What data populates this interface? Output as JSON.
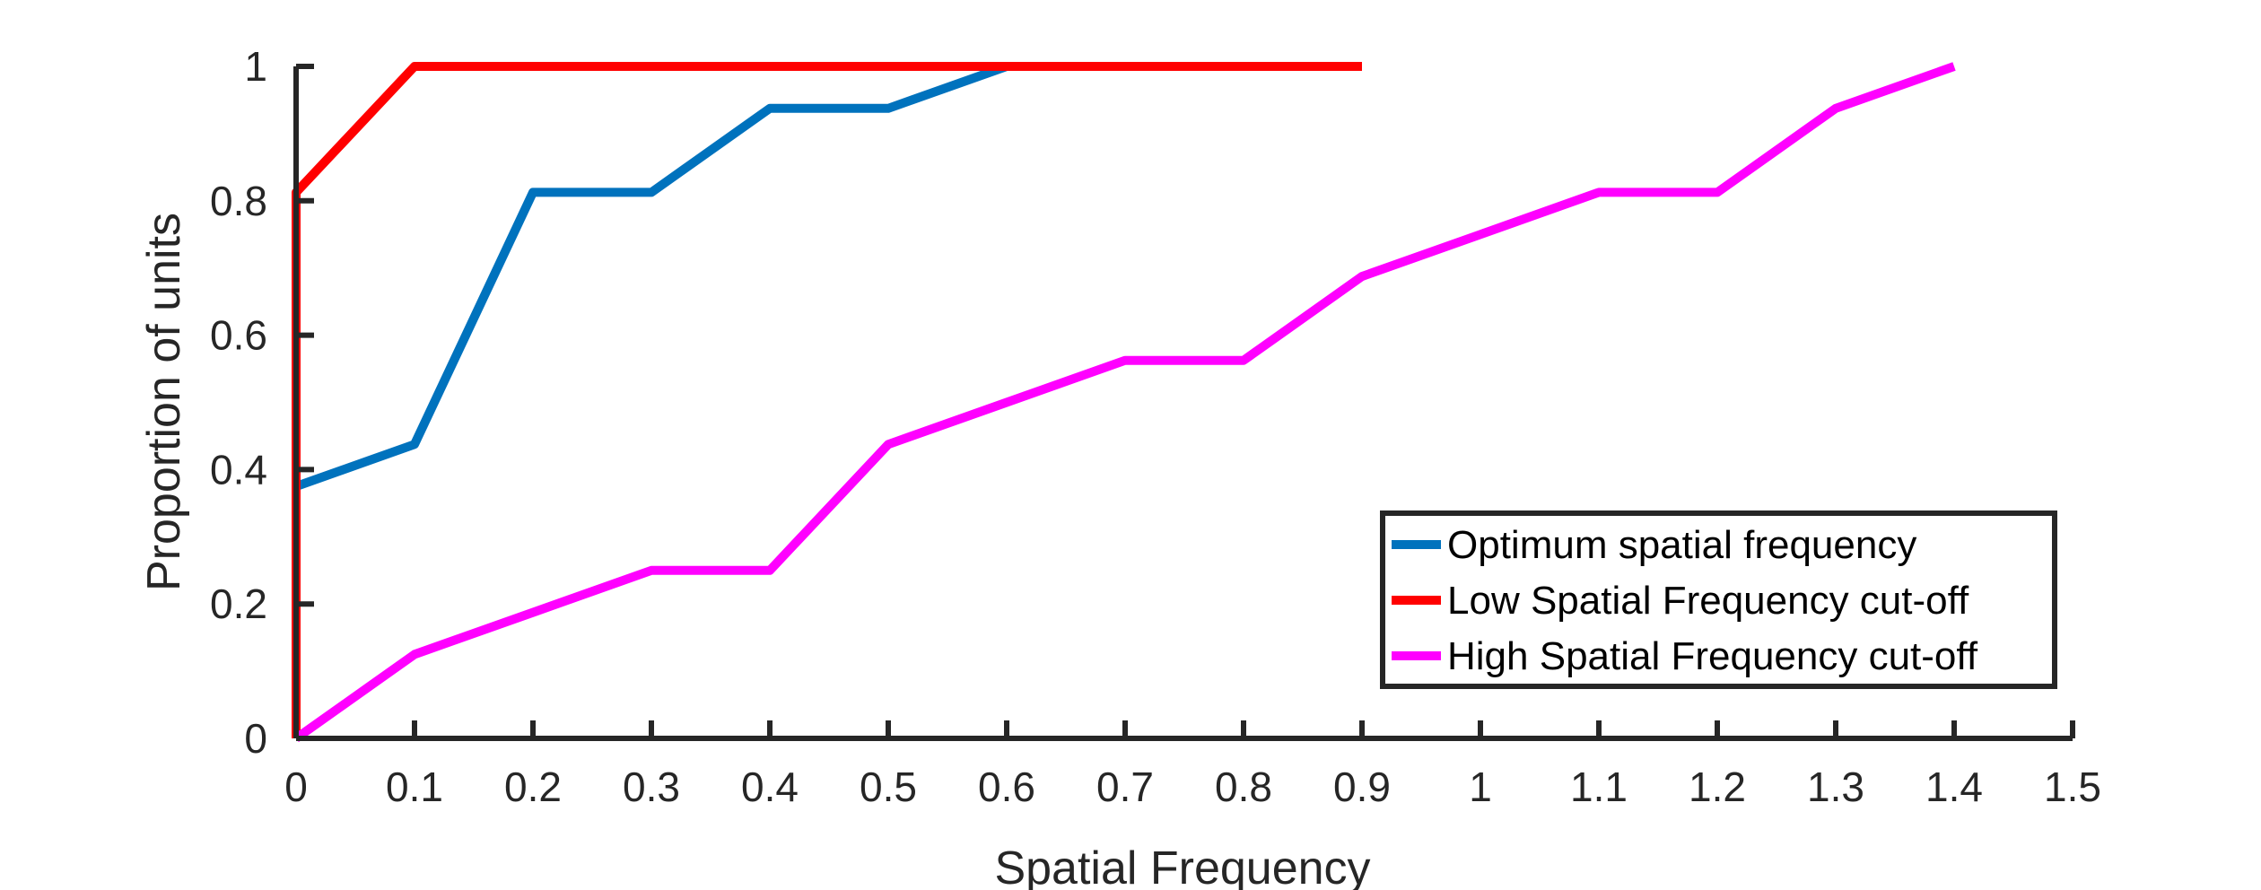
{
  "chart_data": {
    "type": "line",
    "title": "",
    "xlabel": "Spatial Frequency",
    "ylabel": "Proportion of units",
    "xlim": [
      0,
      1.5
    ],
    "ylim": [
      0,
      1
    ],
    "xticks": [
      0,
      0.1,
      0.2,
      0.3,
      0.4,
      0.5,
      0.6,
      0.7,
      0.8,
      0.9,
      1.0,
      1.1,
      1.2,
      1.3,
      1.4,
      1.5
    ],
    "xtick_labels": [
      "0",
      "0.1",
      "0.2",
      "0.3",
      "0.4",
      "0.5",
      "0.6",
      "0.7",
      "0.8",
      "0.9",
      "1",
      "1.1",
      "1.2",
      "1.3",
      "1.4",
      "1.5"
    ],
    "yticks": [
      0,
      0.2,
      0.4,
      0.6,
      0.8,
      1.0
    ],
    "ytick_labels": [
      "0",
      "0.2",
      "0.4",
      "0.6",
      "0.8",
      "1"
    ],
    "grid": false,
    "legend_position": "bottom-right",
    "series": [
      {
        "name": "Optimum spatial frequency",
        "color": "#0072BD",
        "x": [
          0,
          0.1,
          0.2,
          0.3,
          0.4,
          0.5,
          0.6,
          0.7,
          0.8,
          0.9
        ],
        "y": [
          0.375,
          0.4375,
          0.8125,
          0.8125,
          0.9375,
          0.9375,
          1.0,
          1.0,
          1.0,
          1.0
        ]
      },
      {
        "name": "Low Spatial Frequency cut-off",
        "color": "#FF0000",
        "x": [
          0,
          0,
          0.1,
          0.2,
          0.3,
          0.4,
          0.5,
          0.6,
          0.7,
          0.8,
          0.9
        ],
        "y": [
          0,
          0.8125,
          1.0,
          1.0,
          1.0,
          1.0,
          1.0,
          1.0,
          1.0,
          1.0,
          1.0
        ]
      },
      {
        "name": "High Spatial Frequency cut-off",
        "color": "#FF00FF",
        "x": [
          0,
          0.1,
          0.2,
          0.3,
          0.4,
          0.5,
          0.6,
          0.7,
          0.8,
          0.9,
          1.0,
          1.1,
          1.2,
          1.3,
          1.4
        ],
        "y": [
          0,
          0.125,
          0.1875,
          0.25,
          0.25,
          0.4375,
          0.5,
          0.5625,
          0.5625,
          0.6875,
          0.75,
          0.8125,
          0.8125,
          0.9375,
          1.0
        ]
      }
    ]
  }
}
